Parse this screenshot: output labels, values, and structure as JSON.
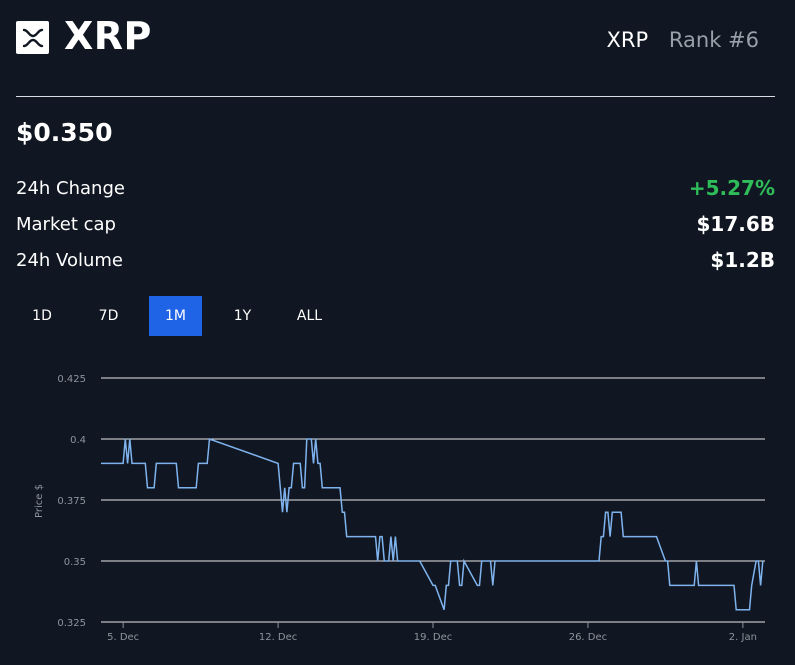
{
  "header": {
    "name": "XRP",
    "symbol": "XRP",
    "rank": "Rank #6",
    "logo_icon": "xrp-logo-icon"
  },
  "price": "$0.350",
  "stats": [
    {
      "label": "24h Change",
      "value": "+5.27%",
      "color": "#2ebd59"
    },
    {
      "label": "Market cap",
      "value": "$17.6B"
    },
    {
      "label": "24h Volume",
      "value": "$1.2B"
    }
  ],
  "tabs": [
    {
      "label": "1D",
      "active": false
    },
    {
      "label": "7D",
      "active": false
    },
    {
      "label": "1M",
      "active": true
    },
    {
      "label": "1Y",
      "active": false
    },
    {
      "label": "ALL",
      "active": false
    }
  ],
  "colors": {
    "background": "#111722",
    "accent": "#1f63e6",
    "positive": "#2ebd59",
    "line": "#7fb3ee"
  },
  "chart_data": {
    "type": "line",
    "ylabel": "Price $",
    "ylim": [
      0.325,
      0.425
    ],
    "y_ticks": [
      "0.425",
      "0.4",
      "0.375",
      "0.35",
      "0.325"
    ],
    "y_tick_values": [
      0.425,
      0.4,
      0.375,
      0.35,
      0.325
    ],
    "x_ticks": [
      {
        "label": "5. Dec",
        "day": 5
      },
      {
        "label": "12. Dec",
        "day": 12
      },
      {
        "label": "19. Dec",
        "day": 19
      },
      {
        "label": "26. Dec",
        "day": 26
      },
      {
        "label": "2. Jan",
        "day": 33
      }
    ],
    "xlim": [
      4.0,
      34.0
    ],
    "grid": "horizontal",
    "series": [
      {
        "x": [
          4.0,
          5.0,
          5.1,
          5.2,
          5.3,
          5.4,
          6.0,
          6.1,
          6.4,
          6.5,
          7.4,
          7.5,
          8.3,
          8.4,
          8.8,
          8.9,
          12.0,
          12.1,
          12.2,
          12.3,
          12.4,
          12.5,
          12.6,
          12.7,
          13.0,
          13.1,
          13.2,
          13.3,
          13.5,
          13.6,
          13.7,
          13.8,
          13.9,
          14.0,
          14.1,
          14.6,
          14.7,
          14.8,
          14.9,
          15.0,
          15.1,
          16.4,
          16.5,
          16.6,
          16.7,
          16.8,
          16.9,
          17.0,
          17.1,
          17.2,
          17.3,
          17.4,
          17.5,
          17.6,
          17.7,
          18.2,
          18.3,
          18.4,
          19.0,
          19.1,
          19.5,
          19.6,
          19.7,
          19.8,
          20.1,
          20.2,
          20.3,
          20.4,
          21.0,
          21.1,
          21.2,
          21.3,
          21.6,
          21.7,
          21.8,
          23.0,
          23.1,
          23.2,
          23.3,
          23.4,
          26.5,
          26.6,
          26.7,
          26.8,
          26.9,
          27.0,
          27.1,
          27.5,
          27.6,
          28.0,
          28.1,
          29.0,
          29.1,
          29.5,
          29.6,
          29.7,
          29.8,
          30.8,
          30.9,
          31.0,
          31.1,
          32.0,
          32.1,
          32.5,
          32.6,
          32.7,
          32.8,
          33.3,
          33.4,
          33.6,
          33.7,
          33.8,
          33.9
        ],
        "y": [
          0.39,
          0.39,
          0.4,
          0.39,
          0.4,
          0.39,
          0.39,
          0.38,
          0.38,
          0.39,
          0.39,
          0.38,
          0.38,
          0.39,
          0.39,
          0.4,
          0.39,
          0.38,
          0.37,
          0.38,
          0.37,
          0.38,
          0.38,
          0.39,
          0.39,
          0.38,
          0.38,
          0.4,
          0.4,
          0.39,
          0.4,
          0.39,
          0.39,
          0.38,
          0.38,
          0.38,
          0.38,
          0.38,
          0.37,
          0.37,
          0.36,
          0.36,
          0.35,
          0.36,
          0.36,
          0.35,
          0.35,
          0.35,
          0.36,
          0.35,
          0.36,
          0.35,
          0.35,
          0.35,
          0.35,
          0.35,
          0.35,
          0.35,
          0.34,
          0.34,
          0.33,
          0.34,
          0.34,
          0.35,
          0.35,
          0.34,
          0.34,
          0.35,
          0.34,
          0.34,
          0.35,
          0.35,
          0.35,
          0.34,
          0.35,
          0.35,
          0.35,
          0.35,
          0.35,
          0.35,
          0.35,
          0.36,
          0.36,
          0.37,
          0.37,
          0.36,
          0.37,
          0.37,
          0.36,
          0.36,
          0.36,
          0.36,
          0.36,
          0.35,
          0.35,
          0.34,
          0.34,
          0.34,
          0.35,
          0.34,
          0.34,
          0.34,
          0.34,
          0.34,
          0.34,
          0.33,
          0.33,
          0.33,
          0.34,
          0.35,
          0.35,
          0.34,
          0.35
        ]
      }
    ]
  }
}
